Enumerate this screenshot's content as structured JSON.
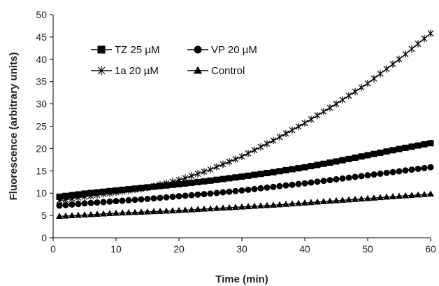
{
  "chart_data": {
    "type": "line",
    "title": "",
    "xlabel": "Time (min)",
    "ylabel": "Fluorescence (arbitrary units)",
    "xlim": [
      0,
      60
    ],
    "ylim": [
      0,
      50
    ],
    "xticks": [
      0,
      10,
      20,
      30,
      40,
      50,
      60
    ],
    "yticks": [
      0,
      5,
      10,
      15,
      20,
      25,
      30,
      35,
      40,
      45,
      50
    ],
    "grid": false,
    "legend_position": "top-left",
    "colors": {
      "series": "#000000",
      "axis": "#000000"
    },
    "x": [
      1,
      5,
      10,
      15,
      20,
      25,
      30,
      35,
      40,
      45,
      50,
      55,
      60
    ],
    "series": [
      {
        "name": "TZ 25 µM",
        "marker": "square",
        "values": [
          9.2,
          9.9,
          10.6,
          11.3,
          12.0,
          12.8,
          13.7,
          14.7,
          15.8,
          17.1,
          18.5,
          19.9,
          21.2
        ]
      },
      {
        "name": "VP 20 µM",
        "marker": "circle",
        "values": [
          7.2,
          7.7,
          8.2,
          8.7,
          9.3,
          9.9,
          10.6,
          11.4,
          12.2,
          13.1,
          14.0,
          14.9,
          15.8
        ]
      },
      {
        "name": "1a 20 µM",
        "marker": "star",
        "values": [
          8.3,
          9.2,
          10.2,
          11.2,
          12.9,
          15.3,
          18.2,
          21.8,
          25.7,
          30.0,
          34.6,
          40.0,
          45.8
        ]
      },
      {
        "name": "Control",
        "marker": "triangle",
        "values": [
          4.8,
          5.1,
          5.5,
          5.8,
          6.1,
          6.5,
          6.9,
          7.3,
          7.8,
          8.3,
          8.8,
          9.3,
          9.8
        ]
      }
    ]
  }
}
